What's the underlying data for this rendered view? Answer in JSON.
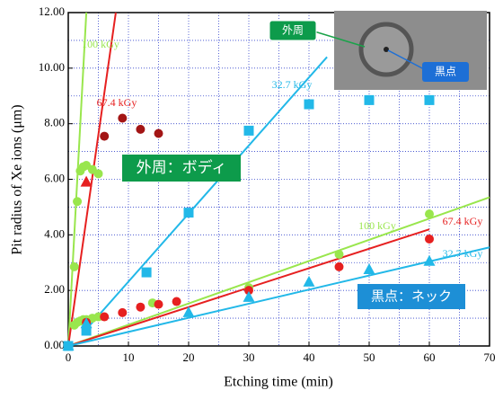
{
  "chart_data": {
    "type": "scatter",
    "xlabel": "Etching time (min)",
    "ylabel": "Pit radius of Xe ions (μm)",
    "xlim": [
      0,
      70
    ],
    "ylim": [
      0,
      12
    ],
    "xticks": [
      0,
      10,
      20,
      30,
      40,
      50,
      60,
      70
    ],
    "yticks": [
      {
        "value": 0,
        "label": "0.00"
      },
      {
        "value": 2,
        "label": "2.00"
      },
      {
        "value": 4,
        "label": "4.00"
      },
      {
        "value": 6,
        "label": "6.00"
      },
      {
        "value": 8,
        "label": "8.00"
      },
      {
        "value": 10,
        "label": "10.00"
      },
      {
        "value": 12,
        "label": "12.00"
      }
    ],
    "x_minor_ticks": [
      5,
      15,
      25,
      35,
      45,
      55,
      65
    ],
    "y_minor_ticks": [
      1,
      3,
      5,
      7,
      9,
      11
    ],
    "grid": true,
    "series": [
      {
        "name": "100 kGy",
        "color": "#99e64d",
        "marker": "circle",
        "x": [
          1,
          1.5,
          2,
          2.5,
          3,
          4,
          5
        ],
        "values": [
          2.85,
          5.2,
          6.3,
          6.45,
          6.5,
          6.35,
          6.2
        ]
      },
      {
        "name": "67.4 kGy",
        "color": "#a31515",
        "marker": "circle",
        "x": [
          6,
          9,
          12,
          15
        ],
        "values": [
          7.55,
          8.2,
          7.8,
          7.65
        ]
      },
      {
        "color": "#e62020",
        "marker": "triangle",
        "x": [
          3
        ],
        "values": [
          5.9
        ]
      },
      {
        "name": "32.7 kGy",
        "color": "#22b8e8",
        "marker": "square",
        "x": [
          0,
          3,
          13,
          20,
          30,
          40,
          50,
          60
        ],
        "values": [
          0,
          0.55,
          2.65,
          4.8,
          7.75,
          8.7,
          8.85,
          8.85
        ]
      },
      {
        "name": "100 kGy",
        "color": "#99e64d",
        "marker": "circle",
        "x": [
          1,
          1.5,
          2,
          2.5,
          3,
          4,
          5,
          14,
          30,
          45,
          60
        ],
        "values": [
          0.75,
          0.85,
          0.9,
          0.95,
          0.95,
          1.0,
          1.05,
          1.55,
          2.1,
          3.3,
          4.75
        ]
      },
      {
        "name": "67.4 kGy",
        "color": "#e62020",
        "marker": "circle",
        "x": [
          3,
          6,
          9,
          12,
          15,
          18,
          30,
          45,
          60
        ],
        "values": [
          0.85,
          1.05,
          1.2,
          1.4,
          1.5,
          1.6,
          2.0,
          2.85,
          3.85
        ]
      },
      {
        "name": "32.7 kGy",
        "color": "#22b8e8",
        "marker": "triangle",
        "x": [
          0,
          3,
          20,
          30,
          40,
          50,
          60
        ],
        "values": [
          0,
          0.8,
          1.2,
          1.75,
          2.3,
          2.75,
          3.05
        ]
      }
    ],
    "fits": [
      {
        "color": "#99e64d",
        "x": [
          0,
          3
        ],
        "values": [
          0,
          12
        ]
      },
      {
        "color": "#e62020",
        "x": [
          0,
          7.9
        ],
        "values": [
          0,
          12
        ]
      },
      {
        "color": "#22b8e8",
        "x": [
          3,
          43
        ],
        "values": [
          0.6,
          10.4
        ]
      },
      {
        "color": "#99e64d",
        "x": [
          0,
          70
        ],
        "values": [
          0,
          5.35
        ]
      },
      {
        "color": "#e62020",
        "x": [
          0,
          60
        ],
        "values": [
          0,
          4.2
        ]
      },
      {
        "color": "#22b8e8",
        "x": [
          0,
          70
        ],
        "values": [
          0,
          3.55
        ]
      }
    ],
    "annotations": [
      "外周：ボディ",
      "黒点：ネック",
      "外周",
      "黒点"
    ]
  }
}
